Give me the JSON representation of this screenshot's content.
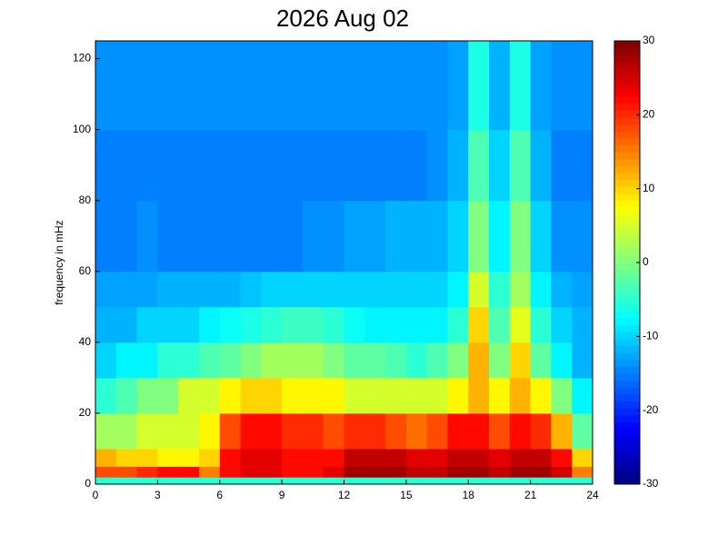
{
  "chart_data": {
    "type": "heatmap",
    "title": "2026 Aug 02",
    "y_label": "frequency in mHz",
    "xlim": [
      0,
      24
    ],
    "xticks": [
      0,
      3,
      6,
      9,
      12,
      15,
      18,
      21,
      24
    ],
    "ylim": [
      0,
      125
    ],
    "yticks": [
      0,
      20,
      40,
      60,
      80,
      100,
      120
    ],
    "x_bins": [
      0,
      1,
      2,
      3,
      4,
      5,
      6,
      7,
      8,
      9,
      10,
      11,
      12,
      13,
      14,
      15,
      16,
      17,
      18,
      19,
      20,
      21,
      22,
      23,
      24
    ],
    "y_bins": [
      0,
      2,
      5,
      10,
      20,
      30,
      40,
      50,
      60,
      80,
      100,
      125
    ],
    "colormap": "jet",
    "clim": [
      -30,
      30
    ],
    "colorbar_ticks": [
      -30,
      -20,
      -10,
      0,
      10,
      20,
      30
    ],
    "values": [
      [
        -5,
        -5,
        -5,
        -5,
        -5,
        -5,
        -5,
        -5,
        -5,
        -5,
        -5,
        -5,
        -5,
        -5,
        -5,
        -5,
        -5,
        -5,
        -5,
        -5,
        -5,
        -5,
        -5,
        -5
      ],
      [
        18,
        18,
        20,
        22,
        22,
        15,
        22,
        24,
        24,
        22,
        22,
        24,
        28,
        28,
        28,
        26,
        26,
        28,
        28,
        26,
        28,
        28,
        25,
        15
      ],
      [
        12,
        10,
        10,
        8,
        8,
        10,
        22,
        24,
        24,
        22,
        22,
        22,
        26,
        26,
        26,
        24,
        24,
        26,
        26,
        24,
        26,
        26,
        22,
        10
      ],
      [
        2,
        2,
        5,
        5,
        5,
        8,
        18,
        22,
        22,
        20,
        20,
        18,
        20,
        20,
        18,
        16,
        18,
        22,
        22,
        18,
        22,
        20,
        12,
        -2
      ],
      [
        -5,
        -3,
        0,
        0,
        5,
        5,
        8,
        10,
        10,
        8,
        8,
        8,
        5,
        5,
        5,
        5,
        5,
        8,
        12,
        8,
        12,
        8,
        0,
        -8
      ],
      [
        -10,
        -8,
        -8,
        -5,
        -5,
        -3,
        -2,
        0,
        2,
        2,
        2,
        0,
        -2,
        -2,
        -3,
        -5,
        -3,
        0,
        12,
        0,
        10,
        -2,
        -8,
        -12
      ],
      [
        -12,
        -12,
        -10,
        -10,
        -10,
        -8,
        -7,
        -6,
        -5,
        -4,
        -4,
        -5,
        -7,
        -8,
        -8,
        -8,
        -8,
        -5,
        10,
        -3,
        6,
        -5,
        -10,
        -12
      ],
      [
        -13,
        -13,
        -13,
        -12,
        -12,
        -12,
        -12,
        -11,
        -10,
        -10,
        -10,
        -10,
        -10,
        -10,
        -10,
        -10,
        -10,
        -8,
        5,
        -5,
        2,
        -8,
        -12,
        -13
      ],
      [
        -15,
        -15,
        -14,
        -15,
        -15,
        -15,
        -15,
        -15,
        -15,
        -15,
        -14,
        -14,
        -13,
        -13,
        -12,
        -12,
        -12,
        -10,
        0,
        -8,
        0,
        -10,
        -14,
        -14
      ],
      [
        -15,
        -15,
        -15,
        -15,
        -15,
        -15,
        -15,
        -15,
        -15,
        -15,
        -15,
        -15,
        -15,
        -15,
        -15,
        -15,
        -14,
        -12,
        -3,
        -10,
        -3,
        -12,
        -15,
        -15
      ],
      [
        -14,
        -14,
        -14,
        -14,
        -14,
        -14,
        -14,
        -14,
        -14,
        -14,
        -14,
        -14,
        -14,
        -14,
        -14,
        -14,
        -14,
        -13,
        -6,
        -12,
        -6,
        -13,
        -14,
        -14
      ]
    ]
  }
}
